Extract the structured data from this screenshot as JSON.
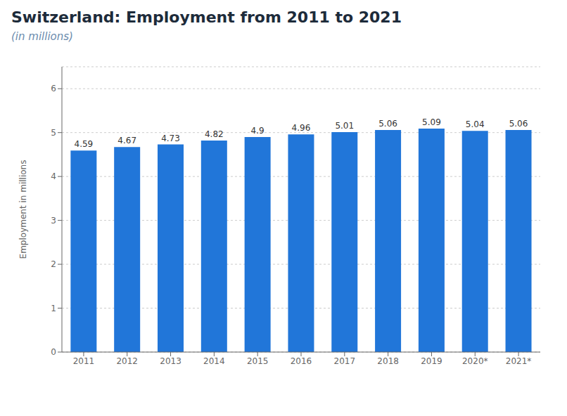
{
  "chart_data": {
    "type": "bar",
    "title": "Switzerland: Employment from 2011 to 2021",
    "subtitle": "(in millions)",
    "categories": [
      "2011",
      "2012",
      "2013",
      "2014",
      "2015",
      "2016",
      "2017",
      "2018",
      "2019",
      "2020*",
      "2021*"
    ],
    "values": [
      4.59,
      4.67,
      4.73,
      4.82,
      4.9,
      4.96,
      5.01,
      5.06,
      5.09,
      5.04,
      5.06
    ],
    "color": "#2176d9",
    "ylabel": "Employment in millions",
    "ylim": [
      0,
      6.5
    ],
    "yticks": [
      0,
      1,
      2,
      3,
      4,
      5,
      6
    ],
    "grid": true,
    "data_labels": true
  }
}
